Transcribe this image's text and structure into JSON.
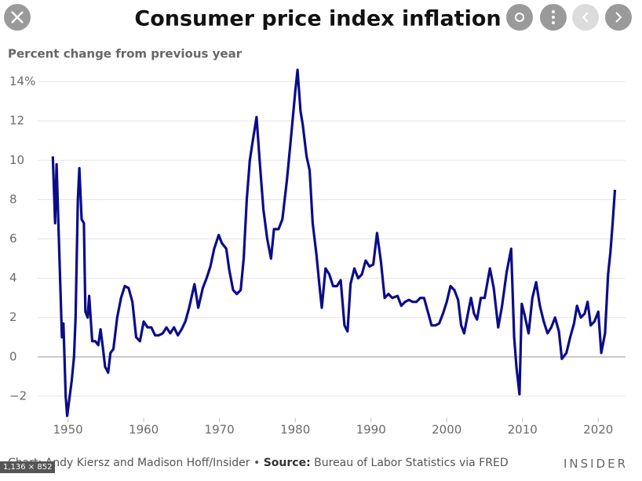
{
  "ui": {
    "image_size": "1,136 × 852"
  },
  "chart_data": {
    "type": "line",
    "title": "Consumer price index inflation",
    "subtitle": "Percent change from previous year",
    "credit": "Chart: Andy Kiersz and Madison Hoff/Insider",
    "separator": "•",
    "source_label": "Source:",
    "source": "Bureau of Labor Statistics via FRED",
    "brand": "INSIDER",
    "color": "#0c0c8a",
    "grid": true,
    "xlim": [
      1946,
      2023.6
    ],
    "ylim": [
      -3.2,
      14.8
    ],
    "xticks": [
      1950,
      1960,
      1970,
      1980,
      1990,
      2000,
      2010,
      2020
    ],
    "yticks": [
      {
        "value": 14,
        "label": "14%"
      },
      12,
      10,
      8,
      6,
      4,
      2,
      0,
      {
        "value": -2,
        "label": "−2"
      }
    ],
    "x": [
      1948.0,
      1948.3,
      1948.5,
      1948.8,
      1949.2,
      1949.4,
      1949.7,
      1949.9,
      1950.2,
      1950.5,
      1950.8,
      1951.0,
      1951.3,
      1951.5,
      1951.8,
      1952.1,
      1952.3,
      1952.6,
      1952.8,
      1953.2,
      1953.6,
      1954.0,
      1954.3,
      1954.6,
      1954.9,
      1955.3,
      1955.6,
      1956.0,
      1956.5,
      1957.0,
      1957.5,
      1958.0,
      1958.5,
      1959.0,
      1959.5,
      1960.0,
      1960.5,
      1961.0,
      1961.5,
      1962.0,
      1962.5,
      1963.0,
      1963.5,
      1964.0,
      1964.5,
      1965.0,
      1965.5,
      1966.0,
      1966.7,
      1967.2,
      1967.8,
      1968.3,
      1968.8,
      1969.3,
      1969.9,
      1970.3,
      1970.9,
      1971.3,
      1971.8,
      1972.3,
      1972.8,
      1973.2,
      1973.6,
      1974.0,
      1974.4,
      1974.9,
      1975.3,
      1975.8,
      1976.3,
      1976.8,
      1977.2,
      1977.8,
      1978.3,
      1978.9,
      1979.4,
      1980.0,
      1980.3,
      1980.7,
      1981.0,
      1981.5,
      1981.9,
      1982.3,
      1982.8,
      1983.2,
      1983.5,
      1984.0,
      1984.5,
      1985.0,
      1985.5,
      1986.0,
      1986.5,
      1986.9,
      1987.3,
      1987.8,
      1988.3,
      1988.8,
      1989.3,
      1989.8,
      1990.3,
      1990.8,
      1991.3,
      1991.8,
      1992.3,
      1992.8,
      1993.5,
      1994.0,
      1994.5,
      1995.0,
      1995.5,
      1996.0,
      1996.5,
      1997.0,
      1997.5,
      1998.0,
      1998.5,
      1999.0,
      1999.5,
      2000.0,
      2000.5,
      2001.0,
      2001.5,
      2001.9,
      2002.3,
      2002.8,
      2003.2,
      2003.6,
      2004.0,
      2004.5,
      2005.0,
      2005.7,
      2006.2,
      2006.8,
      2007.3,
      2007.9,
      2008.5,
      2008.9,
      2009.2,
      2009.6,
      2009.9,
      2010.3,
      2010.8,
      2011.3,
      2011.8,
      2012.3,
      2012.8,
      2013.3,
      2013.8,
      2014.3,
      2014.8,
      2015.2,
      2015.8,
      2016.3,
      2016.8,
      2017.2,
      2017.7,
      2018.2,
      2018.6,
      2019.0,
      2019.5,
      2020.0,
      2020.4,
      2020.9,
      2021.3,
      2021.6,
      2021.9,
      2022.2
    ],
    "values": [
      10.2,
      6.8,
      9.8,
      6,
      1,
      1.7,
      -2,
      -3,
      -2.1,
      -1.2,
      0,
      2,
      8,
      9.6,
      7,
      6.8,
      2.3,
      2,
      3.1,
      0.8,
      0.8,
      0.6,
      1.4,
      0.5,
      -0.5,
      -0.8,
      0.2,
      0.4,
      2,
      3,
      3.6,
      3.5,
      2.8,
      1,
      0.8,
      1.8,
      1.5,
      1.5,
      1.1,
      1.1,
      1.2,
      1.5,
      1.2,
      1.5,
      1.1,
      1.4,
      1.8,
      2.5,
      3.7,
      2.5,
      3.5,
      4,
      4.6,
      5.5,
      6.2,
      5.8,
      5.5,
      4.4,
      3.4,
      3.2,
      3.4,
      5,
      8,
      10,
      11,
      12.2,
      10,
      7.5,
      6,
      5,
      6.5,
      6.5,
      7,
      9,
      11,
      13.5,
      14.6,
      12.5,
      11.8,
      10.2,
      9.5,
      6.8,
      5.2,
      3.6,
      2.5,
      4.5,
      4.2,
      3.6,
      3.6,
      3.9,
      1.6,
      1.3,
      3.7,
      4.5,
      4,
      4.2,
      4.9,
      4.6,
      4.7,
      6.3,
      4.9,
      3,
      3.2,
      3,
      3.1,
      2.6,
      2.8,
      2.9,
      2.8,
      2.8,
      3.0,
      3.0,
      2.3,
      1.6,
      1.6,
      1.7,
      2.2,
      2.8,
      3.6,
      3.4,
      2.9,
      1.6,
      1.2,
      2.2,
      3,
      2.2,
      1.9,
      3.0,
      3.0,
      4.5,
      3.5,
      1.5,
      2.6,
      4.3,
      5.5,
      1,
      -0.5,
      -1.9,
      2.7,
      2.1,
      1.2,
      3,
      3.8,
      2.6,
      1.8,
      1.2,
      1.5,
      2,
      1.3,
      -0.1,
      0.2,
      1,
      1.7,
      2.6,
      2.0,
      2.2,
      2.8,
      1.6,
      1.8,
      2.3,
      0.2,
      1.2,
      4.2,
      5.3,
      6.8,
      8.5
    ]
  }
}
